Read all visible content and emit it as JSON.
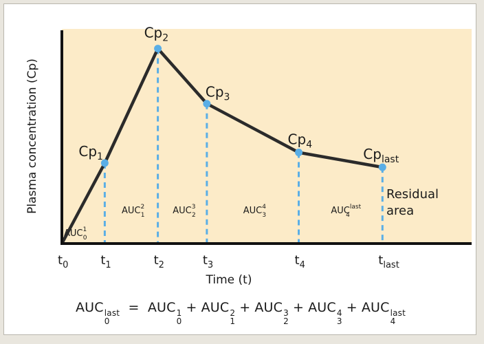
{
  "figure": {
    "background_color": "#fcebc8",
    "curve_color": "#2b2b2b",
    "point_color": "#5aaee6",
    "dashed_color": "#5aaee6"
  },
  "chart_data": {
    "type": "line",
    "title": "",
    "xlabel": "Time (t)",
    "ylabel": "Plasma concentration (Cp)",
    "xlim": [
      0,
      10
    ],
    "ylim": [
      0,
      10
    ],
    "points": [
      {
        "name": "origin",
        "label": "",
        "x": 0,
        "y": 0
      },
      {
        "name": "cp1",
        "label_main": "Cp",
        "label_sub": "1",
        "x": 1.05,
        "y": 3.8
      },
      {
        "name": "cp2",
        "label_main": "Cp",
        "label_sub": "2",
        "x": 2.35,
        "y": 9.2
      },
      {
        "name": "cp3",
        "label_main": "Cp",
        "label_sub": "3",
        "x": 3.55,
        "y": 6.6
      },
      {
        "name": "cp4",
        "label_main": "Cp",
        "label_sub": "4",
        "x": 5.8,
        "y": 4.3
      },
      {
        "name": "cplast",
        "label_main": "Cp",
        "label_sub": "last",
        "x": 7.85,
        "y": 3.6
      }
    ],
    "ticks": [
      {
        "main": "t",
        "sub": "0",
        "x": 0
      },
      {
        "main": "t",
        "sub": "1",
        "x": 1.05
      },
      {
        "main": "t",
        "sub": "2",
        "x": 2.35
      },
      {
        "main": "t",
        "sub": "3",
        "x": 3.55
      },
      {
        "main": "t",
        "sub": "4",
        "x": 5.8
      },
      {
        "main": "t",
        "sub": "last",
        "x": 7.85
      }
    ],
    "regions": [
      {
        "main": "AUC",
        "sub": "0",
        "sup": "1"
      },
      {
        "main": "AUC",
        "sub": "1",
        "sup": "2"
      },
      {
        "main": "AUC",
        "sub": "2",
        "sup": "3"
      },
      {
        "main": "AUC",
        "sub": "3",
        "sup": "4"
      },
      {
        "main": "AUC",
        "sub": "4",
        "sup": "last"
      }
    ],
    "residual_label_line1": "Residual",
    "residual_label_line2": "area",
    "grid": false
  },
  "formula": {
    "lhs": {
      "main": "AUC",
      "sub": "0",
      "sup": "last"
    },
    "equals": "=",
    "plus": "+",
    "terms": [
      {
        "main": "AUC",
        "sub": "0",
        "sup": "1"
      },
      {
        "main": "AUC",
        "sub": "1",
        "sup": "2"
      },
      {
        "main": "AUC",
        "sub": "2",
        "sup": "3"
      },
      {
        "main": "AUC",
        "sub": "3",
        "sup": "4"
      },
      {
        "main": "AUC",
        "sub": "4",
        "sup": "last"
      }
    ]
  }
}
